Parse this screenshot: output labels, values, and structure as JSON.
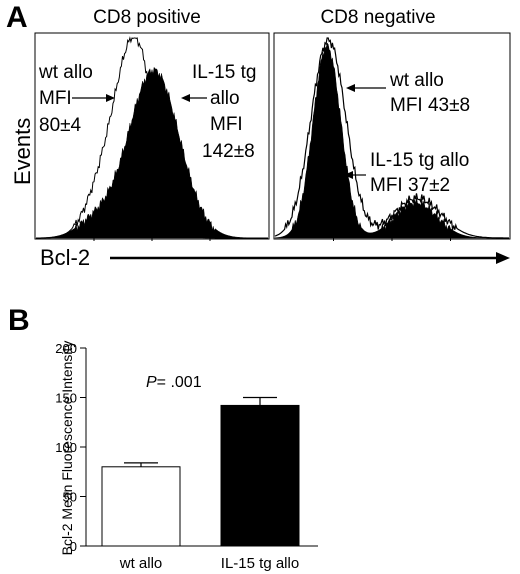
{
  "panel_a": {
    "letter": "A",
    "y_label": "Events",
    "x_label": "Bcl-2",
    "histograms": [
      {
        "heading": "CD8 positive",
        "annotations": [
          {
            "lines": [
              "wt allo",
              "MFI",
              "80±4"
            ]
          },
          {
            "lines": [
              "IL-15 tg",
              "allo",
              "MFI",
              "142±8"
            ]
          }
        ]
      },
      {
        "heading": "CD8 negative",
        "annotations": [
          {
            "lines": [
              "wt allo",
              "MFI 43±8"
            ]
          },
          {
            "lines": [
              "IL-15 tg allo",
              "MFI 37±2"
            ]
          }
        ]
      }
    ]
  },
  "panel_b": {
    "letter": "B",
    "p_label": "P",
    "p_value": "= .001"
  },
  "colors": {
    "filled": "#000000",
    "open": "#ffffff",
    "ink": "#000000"
  },
  "chart_data": [
    {
      "type": "area",
      "panel": "A-left",
      "title": "CD8 positive",
      "ylabel": "Events",
      "xlabel": "Bcl-2",
      "series": [
        {
          "name": "wt allo",
          "style": "open outline",
          "mean": 80,
          "sd": 4
        },
        {
          "name": "IL-15 tg allo",
          "style": "filled",
          "mean": 142,
          "sd": 8
        }
      ]
    },
    {
      "type": "area",
      "panel": "A-right",
      "title": "CD8 negative",
      "ylabel": "Events",
      "xlabel": "Bcl-2",
      "series": [
        {
          "name": "wt allo",
          "style": "open outline",
          "mean": 43,
          "sd": 8
        },
        {
          "name": "IL-15 tg allo",
          "style": "filled",
          "mean": 37,
          "sd": 2
        }
      ]
    },
    {
      "type": "bar",
      "panel": "B",
      "categories": [
        "wt allo",
        "IL-15 tg allo"
      ],
      "values": [
        80,
        142
      ],
      "errors": [
        4,
        8
      ],
      "bar_colors": [
        "#ffffff",
        "#000000"
      ],
      "ylabel": "Bcl-2 Mean Fluorescence Intensity",
      "ylim": [
        0,
        200
      ],
      "yticks": [
        0,
        50,
        100,
        150,
        200
      ],
      "annotation": "P = .001"
    }
  ]
}
